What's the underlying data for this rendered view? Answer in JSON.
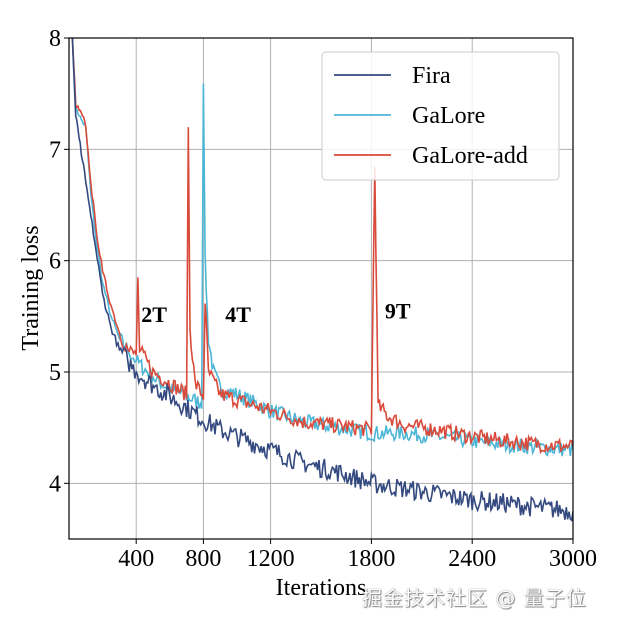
{
  "chart_data": {
    "type": "line",
    "title": "",
    "xlabel": "Iterations",
    "ylabel": "Training loss",
    "xlim": [
      0,
      3000
    ],
    "ylim": [
      3.5,
      8
    ],
    "xticks": [
      400,
      800,
      1200,
      1800,
      2400,
      3000
    ],
    "yticks": [
      4,
      5,
      6,
      7,
      8
    ],
    "grid": true,
    "legend_position": "top-right",
    "series": [
      {
        "name": "Fira",
        "color": "#34497f",
        "x": [
          20,
          40,
          60,
          80,
          100,
          130,
          160,
          200,
          250,
          300,
          350,
          400,
          500,
          600,
          700,
          800,
          900,
          1000,
          1200,
          1400,
          1600,
          1800,
          2000,
          2200,
          2400,
          2600,
          2800,
          3000
        ],
        "y": [
          8.0,
          7.3,
          7.1,
          6.9,
          6.7,
          6.4,
          6.1,
          5.7,
          5.4,
          5.2,
          5.1,
          5.0,
          4.88,
          4.78,
          4.68,
          4.57,
          4.48,
          4.42,
          4.3,
          4.18,
          4.1,
          4.0,
          3.95,
          3.9,
          3.85,
          3.82,
          3.78,
          3.75
        ]
      },
      {
        "name": "GaLore",
        "color": "#4db6d6",
        "x": [
          20,
          40,
          60,
          80,
          100,
          130,
          160,
          200,
          250,
          300,
          350,
          400,
          500,
          600,
          700,
          790,
          800,
          810,
          830,
          860,
          900,
          1000,
          1200,
          1400,
          1600,
          1800,
          2000,
          2200,
          2400,
          2600,
          2800,
          3000
        ],
        "y": [
          8.0,
          7.4,
          7.3,
          7.25,
          7.2,
          6.6,
          6.2,
          5.8,
          5.5,
          5.3,
          5.2,
          5.1,
          4.95,
          4.85,
          4.78,
          4.72,
          7.65,
          6.0,
          5.3,
          5.0,
          4.85,
          4.8,
          4.65,
          4.55,
          4.5,
          4.45,
          4.45,
          4.42,
          4.38,
          4.35,
          4.32,
          4.3
        ]
      },
      {
        "name": "GaLore-add",
        "color": "#d94a3a",
        "x": [
          20,
          40,
          60,
          80,
          100,
          130,
          160,
          200,
          250,
          300,
          350,
          400,
          410,
          420,
          500,
          600,
          700,
          710,
          720,
          750,
          800,
          810,
          830,
          900,
          1000,
          1200,
          1400,
          1600,
          1800,
          1820,
          1840,
          1900,
          2000,
          2200,
          2400,
          2600,
          2800,
          3000
        ],
        "y": [
          8.0,
          7.4,
          7.35,
          7.3,
          7.2,
          6.7,
          6.3,
          5.9,
          5.6,
          5.35,
          5.2,
          5.15,
          5.85,
          5.2,
          5.0,
          4.9,
          4.8,
          7.18,
          5.4,
          4.9,
          4.78,
          5.65,
          5.0,
          4.8,
          4.75,
          4.65,
          4.55,
          4.52,
          4.48,
          6.85,
          4.7,
          4.6,
          4.52,
          4.48,
          4.42,
          4.38,
          4.35,
          4.33
        ]
      }
    ],
    "annotations": [
      {
        "text": "2T",
        "x": 430,
        "y": 5.45
      },
      {
        "text": "4T",
        "x": 930,
        "y": 5.45
      },
      {
        "text": "9T",
        "x": 1880,
        "y": 5.48
      }
    ]
  },
  "watermark": "掘金技术社区 @ 量子位"
}
